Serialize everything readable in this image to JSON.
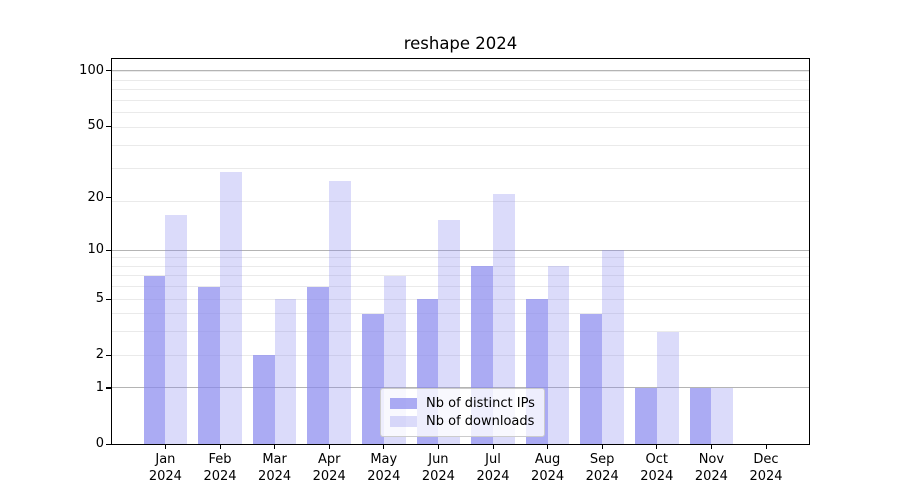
{
  "title": "reshape 2024",
  "colors": {
    "bar_base": "#8888ee",
    "bar_fill_ips": "rgba(136,136,238,0.7)",
    "bar_fill_downloads": "rgba(136,136,238,0.3)",
    "major_gridline": "#b4b4b4",
    "minor_gridline": "#eaeaea",
    "axis_color": "#000000"
  },
  "legend": {
    "position": "lower center",
    "items": [
      "Nb of distinct IPs",
      "Nb of downloads"
    ]
  },
  "chart_data": {
    "type": "bar",
    "title": "reshape 2024",
    "xlabel": "",
    "ylabel": "",
    "yscale": "log1p",
    "ylim": [
      0,
      117
    ],
    "grid": true,
    "y_ticks": [
      100,
      50,
      20,
      10,
      5,
      2,
      1,
      0
    ],
    "months": [
      "Jan",
      "Feb",
      "Mar",
      "Apr",
      "May",
      "Jun",
      "Jul",
      "Aug",
      "Sep",
      "Oct",
      "Nov",
      "Dec"
    ],
    "year": "2024",
    "categories": [
      "Jan 2024",
      "Feb 2024",
      "Mar 2024",
      "Apr 2024",
      "May 2024",
      "Jun 2024",
      "Jul 2024",
      "Aug 2024",
      "Sep 2024",
      "Oct 2024",
      "Nov 2024",
      "Dec 2024"
    ],
    "series": [
      {
        "name": "Nb of distinct IPs",
        "values": [
          7,
          6,
          2,
          6,
          4,
          5,
          8,
          5,
          4,
          1,
          1,
          0
        ]
      },
      {
        "name": "Nb of downloads",
        "values": [
          16,
          28,
          5,
          25,
          7,
          15,
          21,
          8,
          10,
          3,
          1,
          0
        ]
      }
    ]
  }
}
